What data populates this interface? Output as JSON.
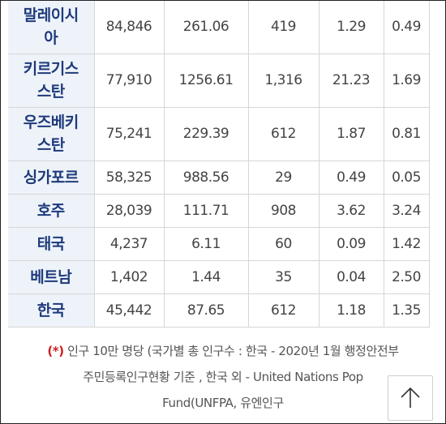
{
  "table": {
    "rows": [
      {
        "country_lines": [
          "말레이시",
          "아"
        ],
        "cells": [
          "84,846",
          "261.06",
          "419",
          "1.29",
          "0.49"
        ]
      },
      {
        "country_lines": [
          "키르기스",
          "스탄"
        ],
        "cells": [
          "77,910",
          "1256.61",
          "1,316",
          "21.23",
          "1.69"
        ]
      },
      {
        "country_lines": [
          "우즈베키",
          "스탄"
        ],
        "cells": [
          "75,241",
          "229.39",
          "612",
          "1.87",
          "0.81"
        ]
      },
      {
        "country_lines": [
          "싱가포르"
        ],
        "cells": [
          "58,325",
          "988.56",
          "29",
          "0.49",
          "0.05"
        ]
      },
      {
        "country_lines": [
          "호주"
        ],
        "cells": [
          "28,039",
          "111.71",
          "908",
          "3.62",
          "3.24"
        ]
      },
      {
        "country_lines": [
          "태국"
        ],
        "cells": [
          "4,237",
          "6.11",
          "60",
          "0.09",
          "1.42"
        ]
      },
      {
        "country_lines": [
          "베트남"
        ],
        "cells": [
          "1,402",
          "1.44",
          "35",
          "0.04",
          "2.50"
        ]
      },
      {
        "country_lines": [
          "한국"
        ],
        "cells": [
          "45,442",
          "87.65",
          "612",
          "1.18",
          "1.35"
        ]
      }
    ]
  },
  "footnote": {
    "marker": "(*)",
    "line1": " 인구 10만 명당 (국가별 총 인구수 : 한국 - 2020년 1월 행정안전부",
    "line2": "주민등록인구현황 기준 , 한국 외 - United Nations Pop",
    "line3": "Fund(UNFPA, 유엔인구"
  },
  "scroll_top_button": {
    "icon": "arrow-up-icon"
  },
  "colors": {
    "country_text": "#1e3a7b",
    "country_bg": "#eef3fa",
    "grid": "#d6d6d6",
    "footnote_marker": "#cc1f1f"
  }
}
